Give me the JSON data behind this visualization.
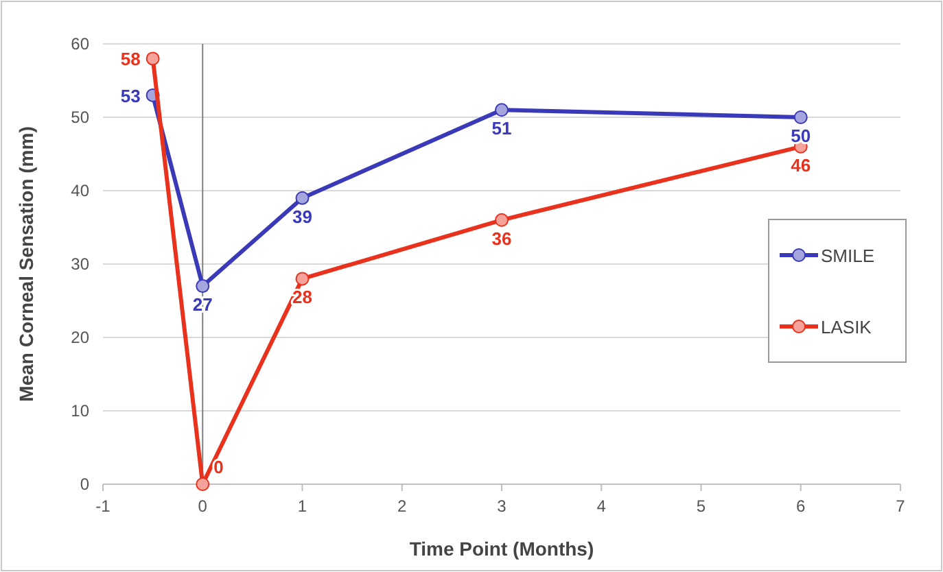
{
  "chart_data": {
    "type": "line",
    "xlabel": "Time Point (Months)",
    "ylabel": "Mean Corneal Sensation (mm)",
    "xlim": [
      -1,
      7
    ],
    "xticks": [
      -1,
      0,
      1,
      2,
      3,
      4,
      5,
      6,
      7
    ],
    "ylim": [
      0,
      60
    ],
    "yticks": [
      0,
      10,
      20,
      30,
      40,
      50,
      60
    ],
    "grid": "y",
    "legend": "right",
    "marker": "circle",
    "line_style": "solid",
    "data_labels": true,
    "ref_lines": [
      {
        "axis": "x",
        "value": 0,
        "color": "#808080"
      }
    ],
    "x": [
      -0.5,
      0,
      1,
      3,
      6
    ],
    "series": [
      {
        "name": "SMILE",
        "color": "#3a3ab8",
        "values": [
          53,
          27,
          39,
          51,
          50
        ]
      },
      {
        "name": "LASIK",
        "color": "#e8321e",
        "values": [
          58,
          0,
          28,
          36,
          46
        ]
      }
    ]
  }
}
